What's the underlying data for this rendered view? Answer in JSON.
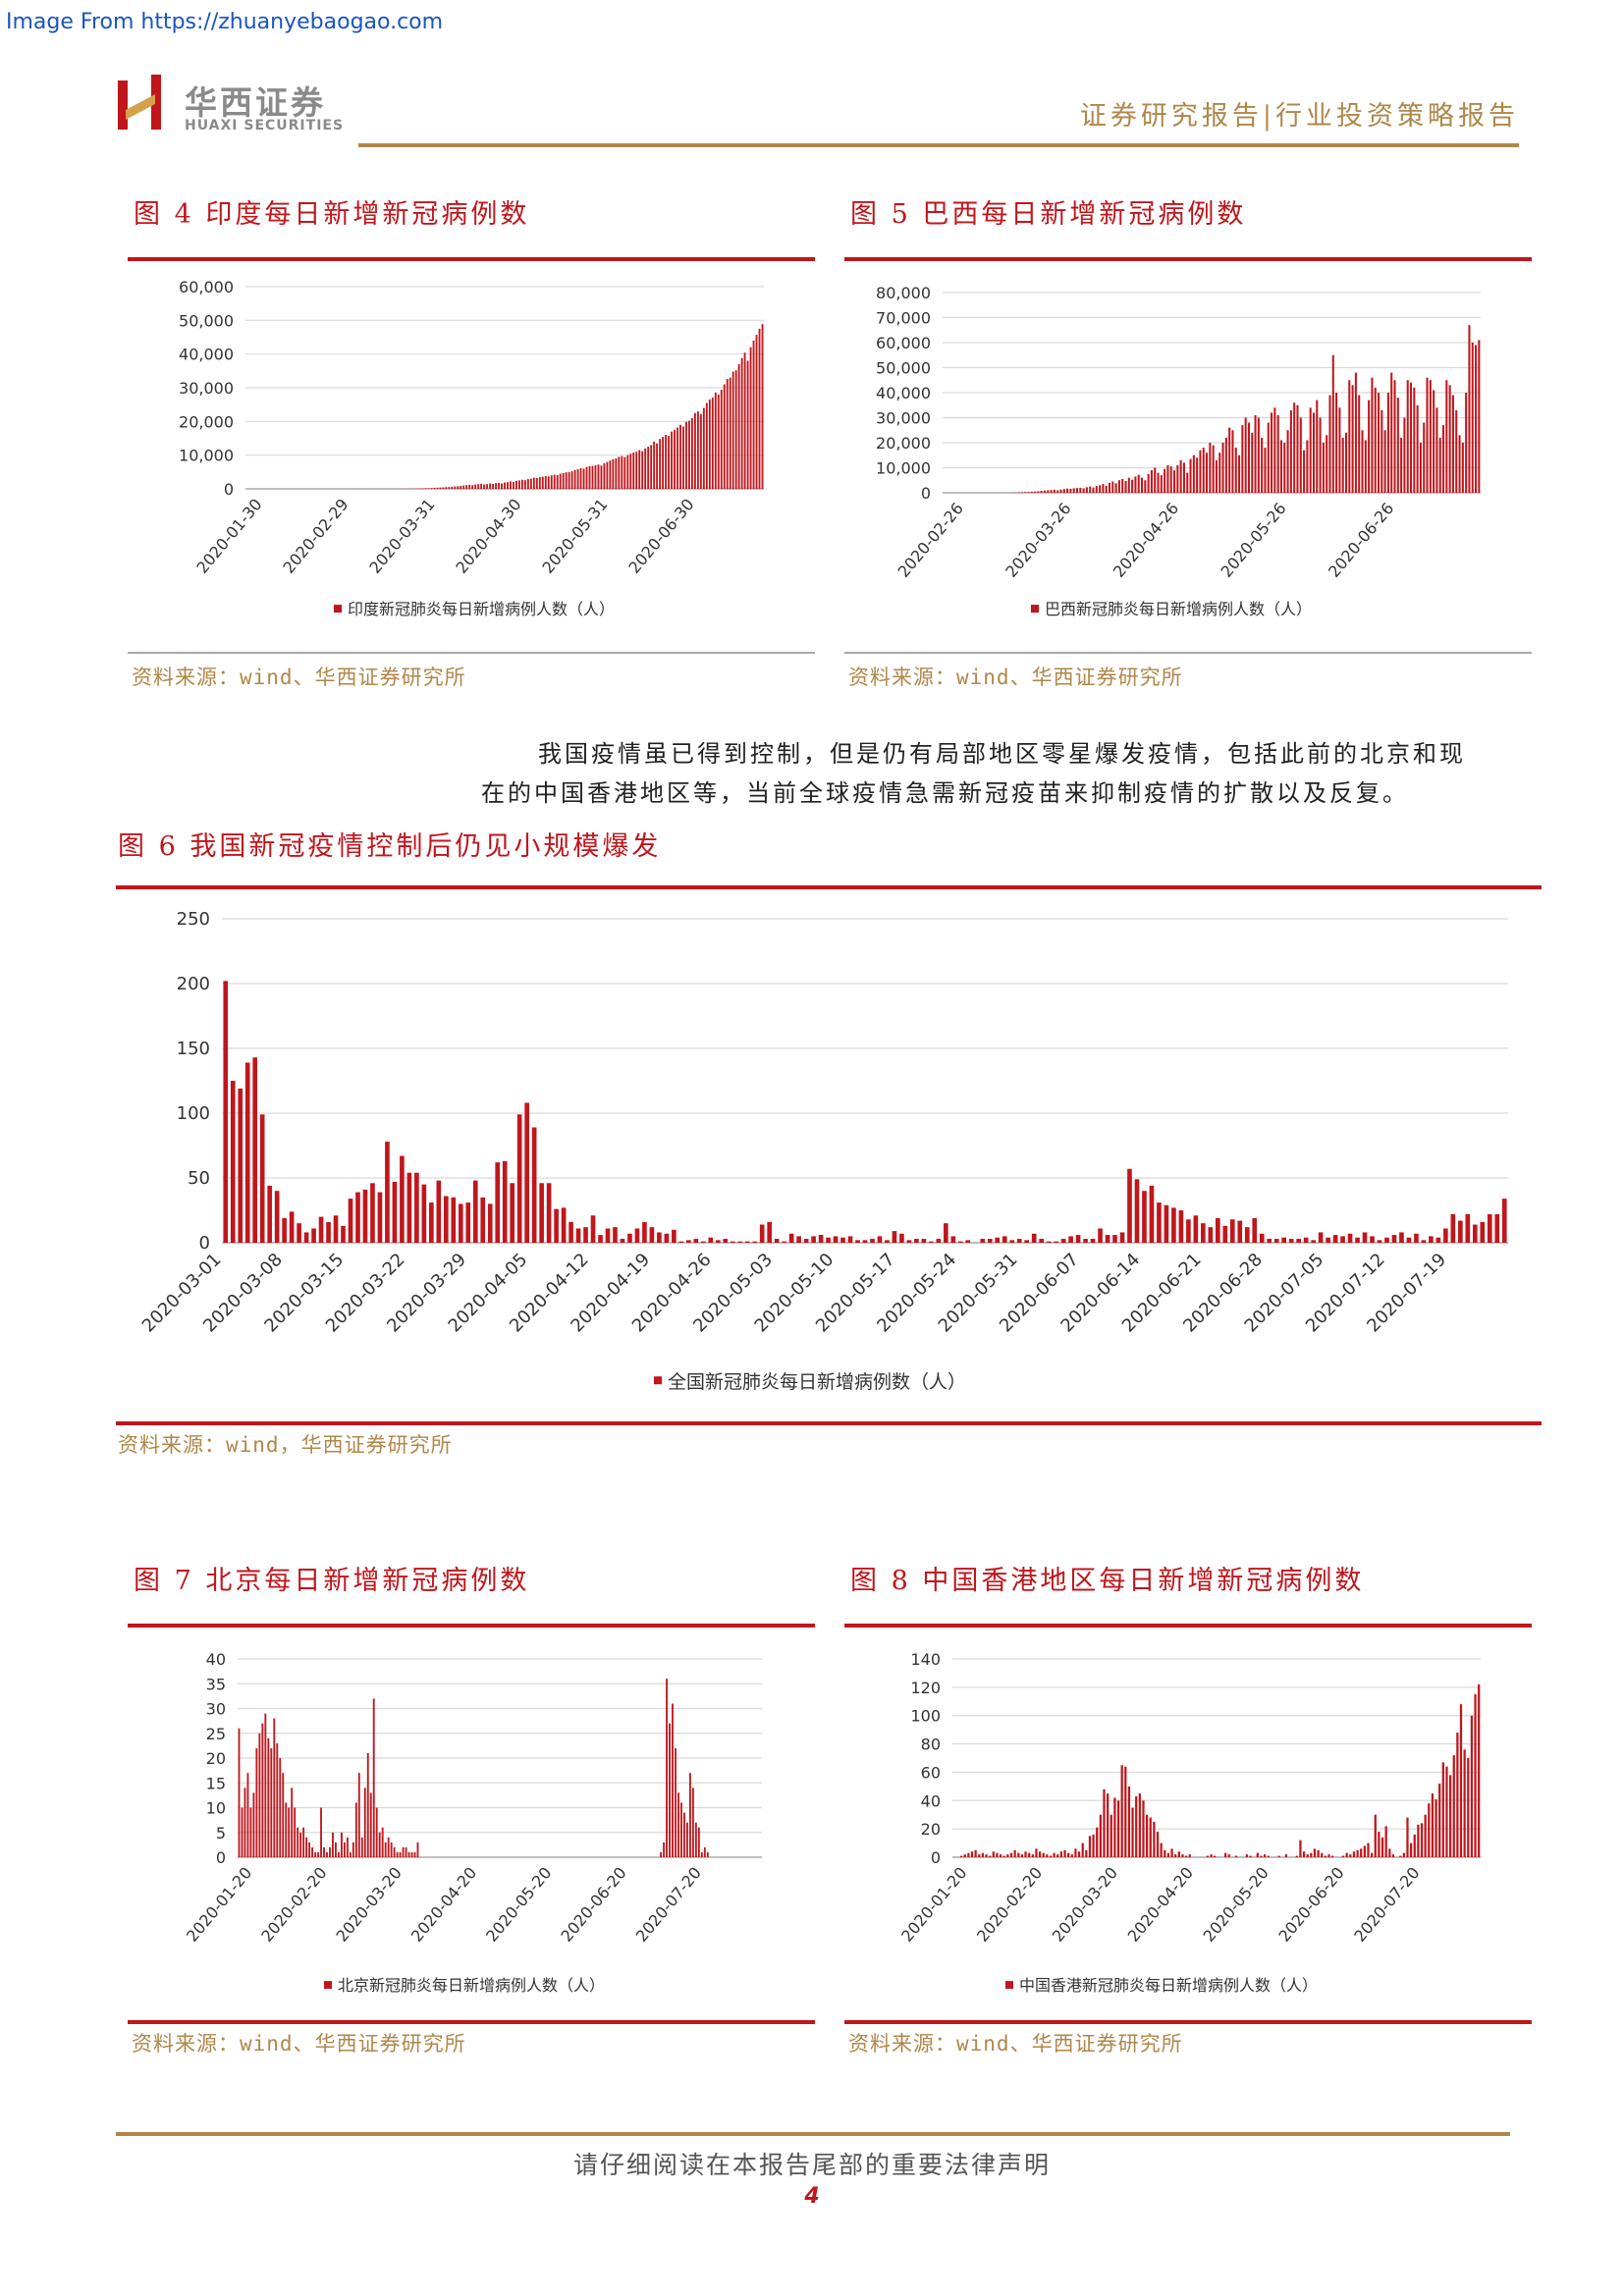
{
  "source_link": "Image From https://zhuanyebaogao.com",
  "header": {
    "logo_cn": "华西证券",
    "logo_en": "HUAXI SECURITIES",
    "report_type": "证券研究报告|行业投资策略报告"
  },
  "colors": {
    "accent_red": "#c0161c",
    "gold": "#b0874a",
    "grid": "#d9d9d9"
  },
  "figures": {
    "fig4": {
      "title": "图 4   印度每日新增新冠病例数",
      "source": "资料来源：wind、华西证券研究所"
    },
    "fig5": {
      "title": "图 5   巴西每日新增新冠病例数",
      "source": "资料来源：wind、华西证券研究所"
    },
    "fig6": {
      "title": "图 6   我国新冠疫情控制后仍见小规模爆发",
      "source": "资料来源：wind，华西证券研究所"
    },
    "fig7": {
      "title": "图 7   北京每日新增新冠病例数",
      "source": "资料来源：wind、华西证券研究所"
    },
    "fig8": {
      "title": "图 8   中国香港地区每日新增新冠病例数",
      "source": "资料来源：wind、华西证券研究所"
    }
  },
  "paragraph": {
    "line1": "我国疫情虽已得到控制，但是仍有局部地区零星爆发疫情，包括此前的北京和现",
    "line2": "在的中国香港地区等，当前全球疫情急需新冠疫苗来抑制疫情的扩散以及反复。"
  },
  "footer": {
    "disclaimer": "请仔细阅读在本报告尾部的重要法律声明",
    "page_number": "4"
  },
  "chart_data": [
    {
      "id": "india",
      "type": "bar",
      "ylim": [
        0,
        60000
      ],
      "yticks": [
        "60,000",
        "50,000",
        "40,000",
        "30,000",
        "20,000",
        "10,000",
        "0"
      ],
      "xticks": [
        "2020-01-30",
        "2020-02-29",
        "2020-03-31",
        "2020-04-30",
        "2020-05-31",
        "2020-06-30"
      ],
      "legend": "印度新冠肺炎每日新增病例人数（人）",
      "series": [
        {
          "name": "印度新冠肺炎每日新增病例人数（人）",
          "values": [
            0,
            0,
            0,
            0,
            0,
            0,
            0,
            0,
            0,
            0,
            0,
            0,
            0,
            0,
            0,
            0,
            0,
            0,
            0,
            0,
            0,
            0,
            0,
            0,
            0,
            0,
            0,
            0,
            0,
            0,
            0,
            0,
            0,
            0,
            0,
            0,
            0,
            1,
            2,
            5,
            3,
            5,
            6,
            8,
            10,
            12,
            15,
            18,
            20,
            22,
            27,
            30,
            35,
            40,
            45,
            50,
            80,
            90,
            100,
            120,
            150,
            180,
            200,
            250,
            300,
            350,
            400,
            450,
            500,
            550,
            600,
            700,
            800,
            900,
            1000,
            1100,
            1200,
            1100,
            1300,
            1400,
            1500,
            1300,
            1400,
            1600,
            1500,
            1700,
            1800,
            1600,
            1900,
            2000,
            2200,
            2100,
            2400,
            2500,
            2700,
            2600,
            2900,
            3000,
            3300,
            3200,
            3500,
            3600,
            3800,
            3700,
            4000,
            4200,
            4100,
            4500,
            4700,
            4900,
            5000,
            5200,
            5600,
            5800,
            6100,
            6000,
            6500,
            6700,
            6800,
            7000,
            7200,
            6900,
            7600,
            8000,
            8400,
            8800,
            9000,
            9500,
            9700,
            9400,
            10000,
            10400,
            10800,
            11000,
            11500,
            11200,
            12000,
            12500,
            13000,
            14000,
            13500,
            14800,
            15400,
            16000,
            15700,
            17000,
            17500,
            18200,
            19000,
            18500,
            19900,
            20200,
            21000,
            22500,
            23000,
            22200,
            24000,
            25500,
            26500,
            27100,
            28600,
            28000,
            29400,
            31000,
            32600,
            33000,
            34800,
            35200,
            37000,
            38800,
            40400,
            38000,
            42000,
            44000,
            45700,
            47500,
            48900
          ]
        }
      ]
    },
    {
      "id": "brazil",
      "type": "bar",
      "ylim": [
        0,
        80000
      ],
      "yticks": [
        "80,000",
        "70,000",
        "60,000",
        "50,000",
        "40,000",
        "30,000",
        "20,000",
        "10,000",
        "0"
      ],
      "xticks": [
        "2020-02-26",
        "2020-03-26",
        "2020-04-26",
        "2020-05-26",
        "2020-06-26"
      ],
      "legend": "巴西新冠肺炎每日新增病例人数（人）",
      "series": [
        {
          "name": "巴西新冠肺炎每日新增病例人数（人）",
          "values": [
            0,
            0,
            0,
            0,
            0,
            0,
            0,
            0,
            0,
            0,
            0,
            0,
            0,
            0,
            0,
            0,
            0,
            5,
            20,
            40,
            60,
            100,
            150,
            200,
            250,
            300,
            350,
            450,
            500,
            600,
            800,
            900,
            1000,
            1100,
            1200,
            1000,
            1300,
            1500,
            1700,
            1600,
            1800,
            1900,
            2000,
            1800,
            2200,
            2500,
            2100,
            2700,
            3000,
            3500,
            2800,
            4000,
            4500,
            3800,
            5000,
            5500,
            4700,
            6000,
            5200,
            6500,
            7200,
            6000,
            5000,
            7500,
            9000,
            10000,
            8000,
            7000,
            9500,
            11000,
            10500,
            9000,
            11000,
            13000,
            12000,
            8000,
            13500,
            15000,
            14000,
            17000,
            18000,
            16000,
            20000,
            19000,
            13000,
            16000,
            20000,
            22000,
            26000,
            25000,
            18000,
            15000,
            27000,
            30000,
            28000,
            24000,
            31000,
            30000,
            22000,
            18000,
            28000,
            32000,
            34000,
            31000,
            21000,
            20000,
            25000,
            33000,
            36000,
            35000,
            30000,
            17000,
            21000,
            34000,
            32000,
            37000,
            30000,
            20000,
            23000,
            39000,
            55000,
            40000,
            34000,
            22000,
            24000,
            45000,
            43000,
            48000,
            39000,
            25000,
            21000,
            37000,
            46000,
            42000,
            40000,
            33000,
            25000,
            40000,
            48000,
            45000,
            38000,
            22000,
            30000,
            45000,
            44000,
            42000,
            35000,
            20000,
            28000,
            46000,
            45000,
            41000,
            34000,
            22000,
            27000,
            45000,
            43000,
            39000,
            33000,
            23000,
            20000,
            40000,
            67000,
            60000,
            59000,
            61000
          ]
        }
      ]
    },
    {
      "id": "china",
      "type": "bar",
      "ylim": [
        0,
        250
      ],
      "yticks": [
        "250",
        "200",
        "150",
        "100",
        "50",
        "0"
      ],
      "xticks": [
        "2020-03-01",
        "2020-03-08",
        "2020-03-15",
        "2020-03-22",
        "2020-03-29",
        "2020-04-05",
        "2020-04-12",
        "2020-04-19",
        "2020-04-26",
        "2020-05-03",
        "2020-05-10",
        "2020-05-17",
        "2020-05-24",
        "2020-05-31",
        "2020-06-07",
        "2020-06-14",
        "2020-06-21",
        "2020-06-28",
        "2020-07-05",
        "2020-07-12",
        "2020-07-19"
      ],
      "legend": "全国新冠肺炎每日新增病例数（人）",
      "series": [
        {
          "name": "全国新冠肺炎每日新增病例数（人）",
          "values": [
            202,
            125,
            119,
            139,
            143,
            99,
            44,
            40,
            19,
            24,
            15,
            8,
            11,
            20,
            16,
            21,
            13,
            34,
            39,
            41,
            46,
            39,
            78,
            47,
            67,
            54,
            54,
            45,
            31,
            48,
            36,
            35,
            30,
            31,
            48,
            35,
            30,
            62,
            63,
            46,
            99,
            108,
            89,
            46,
            46,
            26,
            27,
            16,
            11,
            12,
            21,
            6,
            11,
            12,
            3,
            7,
            11,
            16,
            12,
            8,
            7,
            10,
            1,
            2,
            3,
            1,
            4,
            2,
            3,
            1,
            1,
            1,
            1,
            14,
            16,
            3,
            1,
            7,
            5,
            3,
            5,
            6,
            4,
            5,
            4,
            5,
            2,
            2,
            3,
            5,
            2,
            9,
            7,
            2,
            3,
            3,
            1,
            3,
            15,
            5,
            1,
            2,
            0,
            3,
            3,
            4,
            5,
            2,
            3,
            2,
            7,
            3,
            1,
            1,
            3,
            5,
            6,
            3,
            3,
            11,
            6,
            6,
            8,
            57,
            49,
            40,
            44,
            31,
            29,
            27,
            25,
            18,
            21,
            15,
            12,
            19,
            13,
            18,
            17,
            12,
            19,
            7,
            3,
            3,
            4,
            3,
            3,
            4,
            2,
            8,
            4,
            6,
            5,
            7,
            4,
            8,
            5,
            2,
            4,
            6,
            8,
            4,
            7,
            2,
            5,
            4,
            11,
            22,
            17,
            22,
            14,
            16,
            22,
            22,
            34
          ]
        }
      ]
    },
    {
      "id": "beijing",
      "type": "bar",
      "ylim": [
        0,
        40
      ],
      "yticks": [
        "40",
        "35",
        "30",
        "25",
        "20",
        "15",
        "10",
        "5",
        "0"
      ],
      "xticks": [
        "2020-01-20",
        "2020-02-20",
        "2020-03-20",
        "2020-04-20",
        "2020-05-20",
        "2020-06-20",
        "2020-07-20"
      ],
      "legend": "北京新冠肺炎每日新增病例人数（人）",
      "series": [
        {
          "name": "北京新冠肺炎每日新增病例人数（人）",
          "values": [
            26,
            10,
            14,
            17,
            10,
            13,
            22,
            25,
            27,
            29,
            24,
            22,
            28,
            23,
            20,
            17,
            11,
            10,
            14,
            10,
            6,
            5,
            6,
            4,
            3,
            2,
            1,
            1,
            10,
            2,
            1,
            2,
            5,
            3,
            1,
            5,
            3,
            4,
            1,
            3,
            11,
            17,
            4,
            14,
            21,
            13,
            32,
            10,
            5,
            6,
            3,
            4,
            3,
            2,
            1,
            1,
            2,
            2,
            1,
            1,
            1,
            3,
            0,
            0,
            0,
            0,
            0,
            0,
            0,
            0,
            0,
            0,
            0,
            0,
            0,
            0,
            0,
            0,
            0,
            0,
            0,
            0,
            0,
            0,
            0,
            0,
            0,
            0,
            0,
            0,
            0,
            0,
            0,
            0,
            0,
            0,
            0,
            0,
            0,
            0,
            0,
            0,
            0,
            0,
            0,
            0,
            0,
            0,
            0,
            0,
            0,
            0,
            0,
            0,
            0,
            0,
            0,
            0,
            0,
            0,
            0,
            0,
            0,
            0,
            0,
            0,
            0,
            0,
            0,
            0,
            0,
            0,
            0,
            0,
            0,
            0,
            0,
            0,
            0,
            0,
            0,
            0,
            0,
            0,
            1,
            3,
            36,
            27,
            31,
            22,
            13,
            11,
            9,
            7,
            17,
            14,
            7,
            6,
            1,
            2,
            1,
            0,
            0,
            0,
            0,
            0,
            0,
            0,
            0,
            0,
            0,
            0,
            0,
            0,
            0,
            0,
            0,
            0,
            0
          ]
        }
      ]
    },
    {
      "id": "hongkong",
      "type": "bar",
      "ylim": [
        0,
        140
      ],
      "yticks": [
        "140",
        "120",
        "100",
        "80",
        "60",
        "40",
        "20",
        "0"
      ],
      "xticks": [
        "2020-01-20",
        "2020-02-20",
        "2020-03-20",
        "2020-04-20",
        "2020-05-20",
        "2020-06-20",
        "2020-07-20"
      ],
      "legend": "中国香港新冠肺炎每日新增病例人数（人）",
      "series": [
        {
          "name": "中国香港新冠肺炎每日新增病例人数（人）",
          "values": [
            0,
            0,
            1,
            2,
            3,
            4,
            5,
            2,
            3,
            2,
            1,
            4,
            3,
            2,
            1,
            2,
            3,
            5,
            3,
            2,
            4,
            3,
            2,
            6,
            4,
            3,
            2,
            1,
            3,
            2,
            4,
            5,
            3,
            2,
            6,
            4,
            10,
            5,
            15,
            16,
            21,
            30,
            48,
            45,
            30,
            42,
            40,
            65,
            64,
            50,
            35,
            43,
            45,
            40,
            30,
            28,
            25,
            18,
            10,
            5,
            3,
            6,
            2,
            4,
            2,
            1,
            2,
            0,
            0,
            0,
            0,
            1,
            2,
            1,
            0,
            0,
            3,
            2,
            0,
            1,
            0,
            0,
            2,
            1,
            0,
            3,
            1,
            2,
            1,
            0,
            0,
            1,
            0,
            2,
            0,
            0,
            1,
            12,
            4,
            2,
            3,
            6,
            5,
            3,
            1,
            2,
            1,
            0,
            0,
            1,
            3,
            2,
            4,
            5,
            6,
            8,
            10,
            3,
            30,
            18,
            14,
            22,
            6,
            2,
            0,
            1,
            3,
            28,
            10,
            16,
            23,
            24,
            30,
            38,
            45,
            41,
            52,
            67,
            64,
            58,
            72,
            88,
            108,
            76,
            70,
            100,
            115,
            122
          ]
        }
      ]
    }
  ]
}
